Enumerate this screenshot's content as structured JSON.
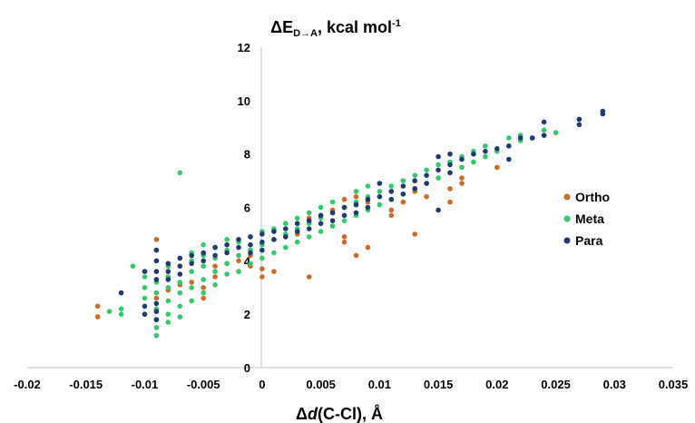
{
  "chart_data": {
    "type": "scatter",
    "title": "ΔE",
    "title_sub": "D→A",
    "title_rest": ", kcal mol",
    "title_sup": "-1",
    "xlabel_pre": "Δ",
    "xlabel_italic": "d",
    "xlabel_post": "(C-Cl), Å",
    "xlim": [
      -0.02,
      0.035
    ],
    "ylim": [
      0,
      12
    ],
    "x_ticks": [
      "-0.02",
      "-0.015",
      "-0.01",
      "-0.005",
      "0",
      "0.005",
      "0.01",
      "0.015",
      "0.02",
      "0.025",
      "0.03",
      "0.035"
    ],
    "y_ticks": [
      "0",
      "2",
      "4",
      "6",
      "8",
      "10",
      "12"
    ],
    "grid": false,
    "legend_position": "right",
    "series": [
      {
        "name": "Ortho",
        "color": "#cc6b28",
        "points": [
          [
            -0.014,
            2.3
          ],
          [
            -0.014,
            1.9
          ],
          [
            -0.009,
            4.8
          ],
          [
            -0.009,
            2.6
          ],
          [
            -0.008,
            2.9
          ],
          [
            -0.007,
            3.1
          ],
          [
            -0.006,
            3.2
          ],
          [
            -0.005,
            3.0
          ],
          [
            -0.005,
            2.6
          ],
          [
            -0.004,
            3.4
          ],
          [
            -0.004,
            3.8
          ],
          [
            -0.003,
            3.9
          ],
          [
            -0.002,
            3.6
          ],
          [
            -0.002,
            4.0
          ],
          [
            -0.001,
            3.8
          ],
          [
            -0.001,
            4.2
          ],
          [
            0.0,
            3.4
          ],
          [
            0.0,
            3.7
          ],
          [
            0.001,
            3.6
          ],
          [
            0.002,
            4.9
          ],
          [
            0.003,
            5.0
          ],
          [
            0.004,
            3.4
          ],
          [
            0.004,
            5.6
          ],
          [
            0.005,
            5.7
          ],
          [
            0.006,
            5.9
          ],
          [
            0.007,
            6.3
          ],
          [
            0.007,
            4.9
          ],
          [
            0.007,
            4.7
          ],
          [
            0.008,
            4.2
          ],
          [
            0.008,
            6.4
          ],
          [
            0.009,
            4.5
          ],
          [
            0.009,
            6.2
          ],
          [
            0.011,
            5.9
          ],
          [
            0.011,
            5.7
          ],
          [
            0.012,
            6.2
          ],
          [
            0.013,
            5.0
          ],
          [
            0.013,
            6.6
          ],
          [
            0.014,
            6.4
          ],
          [
            0.016,
            6.2
          ],
          [
            0.016,
            6.7
          ],
          [
            0.017,
            6.9
          ],
          [
            0.017,
            7.1
          ],
          [
            0.02,
            7.5
          ]
        ]
      },
      {
        "name": "Meta",
        "color": "#33c86e",
        "points": [
          [
            -0.013,
            2.1
          ],
          [
            -0.012,
            2.0
          ],
          [
            -0.012,
            2.2
          ],
          [
            -0.011,
            3.8
          ],
          [
            -0.01,
            2.6
          ],
          [
            -0.01,
            3.0
          ],
          [
            -0.01,
            3.4
          ],
          [
            -0.009,
            1.2
          ],
          [
            -0.009,
            1.5
          ],
          [
            -0.009,
            1.8
          ],
          [
            -0.009,
            2.2
          ],
          [
            -0.009,
            2.8
          ],
          [
            -0.009,
            3.2
          ],
          [
            -0.008,
            1.7
          ],
          [
            -0.008,
            2.0
          ],
          [
            -0.008,
            2.5
          ],
          [
            -0.008,
            3.0
          ],
          [
            -0.008,
            3.4
          ],
          [
            -0.008,
            3.8
          ],
          [
            -0.007,
            7.3
          ],
          [
            -0.007,
            1.9
          ],
          [
            -0.007,
            2.3
          ],
          [
            -0.007,
            2.8
          ],
          [
            -0.007,
            3.2
          ],
          [
            -0.006,
            2.5
          ],
          [
            -0.006,
            3.0
          ],
          [
            -0.006,
            3.6
          ],
          [
            -0.006,
            4.0
          ],
          [
            -0.006,
            4.3
          ],
          [
            -0.005,
            2.8
          ],
          [
            -0.005,
            3.3
          ],
          [
            -0.005,
            3.8
          ],
          [
            -0.005,
            4.2
          ],
          [
            -0.005,
            4.6
          ],
          [
            -0.004,
            3.1
          ],
          [
            -0.004,
            3.6
          ],
          [
            -0.004,
            4.1
          ],
          [
            -0.004,
            4.5
          ],
          [
            -0.003,
            3.5
          ],
          [
            -0.003,
            3.9
          ],
          [
            -0.003,
            4.4
          ],
          [
            -0.003,
            4.8
          ],
          [
            -0.002,
            3.6
          ],
          [
            -0.002,
            4.2
          ],
          [
            -0.002,
            4.7
          ],
          [
            -0.001,
            3.9
          ],
          [
            -0.001,
            4.4
          ],
          [
            -0.001,
            4.9
          ],
          [
            0.0,
            4.1
          ],
          [
            0.0,
            4.6
          ],
          [
            0.0,
            5.1
          ],
          [
            0.001,
            4.3
          ],
          [
            0.001,
            4.8
          ],
          [
            0.001,
            5.2
          ],
          [
            0.002,
            4.5
          ],
          [
            0.002,
            5.0
          ],
          [
            0.002,
            5.4
          ],
          [
            0.003,
            4.7
          ],
          [
            0.003,
            5.2
          ],
          [
            0.003,
            5.6
          ],
          [
            0.004,
            4.9
          ],
          [
            0.004,
            5.4
          ],
          [
            0.004,
            5.8
          ],
          [
            0.005,
            5.1
          ],
          [
            0.005,
            5.6
          ],
          [
            0.005,
            6.0
          ],
          [
            0.006,
            5.3
          ],
          [
            0.006,
            5.8
          ],
          [
            0.006,
            6.2
          ],
          [
            0.007,
            5.5
          ],
          [
            0.007,
            6.0
          ],
          [
            0.008,
            5.7
          ],
          [
            0.008,
            6.2
          ],
          [
            0.008,
            6.6
          ],
          [
            0.009,
            5.9
          ],
          [
            0.009,
            6.4
          ],
          [
            0.009,
            6.8
          ],
          [
            0.01,
            6.1
          ],
          [
            0.01,
            6.6
          ],
          [
            0.011,
            6.3
          ],
          [
            0.011,
            6.8
          ],
          [
            0.012,
            6.5
          ],
          [
            0.012,
            7.0
          ],
          [
            0.013,
            6.7
          ],
          [
            0.013,
            7.2
          ],
          [
            0.014,
            6.9
          ],
          [
            0.014,
            7.4
          ],
          [
            0.015,
            7.1
          ],
          [
            0.015,
            7.6
          ],
          [
            0.016,
            7.3
          ],
          [
            0.016,
            7.7
          ],
          [
            0.017,
            7.5
          ],
          [
            0.017,
            7.9
          ],
          [
            0.018,
            7.7
          ],
          [
            0.018,
            8.1
          ],
          [
            0.019,
            7.9
          ],
          [
            0.019,
            8.3
          ],
          [
            0.02,
            8.1
          ],
          [
            0.021,
            8.3
          ],
          [
            0.021,
            8.6
          ],
          [
            0.022,
            8.5
          ],
          [
            0.022,
            8.7
          ],
          [
            0.023,
            8.6
          ],
          [
            0.024,
            8.9
          ],
          [
            0.025,
            8.8
          ]
        ]
      },
      {
        "name": "Para",
        "color": "#1f3a6e",
        "points": [
          [
            -0.012,
            2.8
          ],
          [
            -0.01,
            2.3
          ],
          [
            -0.01,
            2.0
          ],
          [
            -0.01,
            3.6
          ],
          [
            -0.009,
            4.4
          ],
          [
            -0.009,
            4.0
          ],
          [
            -0.009,
            3.6
          ],
          [
            -0.009,
            3.3
          ],
          [
            -0.009,
            2.4
          ],
          [
            -0.009,
            2.1
          ],
          [
            -0.009,
            1.8
          ],
          [
            -0.008,
            3.9
          ],
          [
            -0.008,
            3.6
          ],
          [
            -0.008,
            3.3
          ],
          [
            -0.007,
            4.1
          ],
          [
            -0.007,
            3.8
          ],
          [
            -0.007,
            3.5
          ],
          [
            -0.006,
            4.2
          ],
          [
            -0.006,
            3.9
          ],
          [
            -0.005,
            4.3
          ],
          [
            -0.005,
            4.0
          ],
          [
            -0.004,
            4.5
          ],
          [
            -0.004,
            4.2
          ],
          [
            -0.003,
            4.6
          ],
          [
            -0.003,
            4.3
          ],
          [
            -0.002,
            4.8
          ],
          [
            -0.002,
            4.5
          ],
          [
            -0.001,
            4.9
          ],
          [
            -0.001,
            4.6
          ],
          [
            -0.001,
            4.3
          ],
          [
            0.0,
            5.0
          ],
          [
            0.0,
            4.7
          ],
          [
            0.0,
            4.4
          ],
          [
            0.001,
            5.1
          ],
          [
            0.001,
            4.8
          ],
          [
            0.002,
            5.2
          ],
          [
            0.002,
            4.9
          ],
          [
            0.003,
            5.4
          ],
          [
            0.003,
            5.1
          ],
          [
            0.004,
            5.5
          ],
          [
            0.004,
            5.2
          ],
          [
            0.005,
            5.7
          ],
          [
            0.005,
            5.4
          ],
          [
            0.006,
            5.8
          ],
          [
            0.006,
            5.5
          ],
          [
            0.007,
            6.0
          ],
          [
            0.007,
            5.7
          ],
          [
            0.008,
            6.1
          ],
          [
            0.008,
            5.8
          ],
          [
            0.009,
            6.3
          ],
          [
            0.009,
            6.0
          ],
          [
            0.01,
            6.4
          ],
          [
            0.01,
            6.9
          ],
          [
            0.011,
            6.6
          ],
          [
            0.011,
            6.3
          ],
          [
            0.012,
            6.8
          ],
          [
            0.012,
            6.5
          ],
          [
            0.013,
            7.0
          ],
          [
            0.013,
            6.7
          ],
          [
            0.014,
            7.2
          ],
          [
            0.014,
            6.9
          ],
          [
            0.015,
            7.4
          ],
          [
            0.015,
            7.9
          ],
          [
            0.015,
            5.9
          ],
          [
            0.016,
            7.6
          ],
          [
            0.016,
            7.3
          ],
          [
            0.016,
            8.0
          ],
          [
            0.017,
            7.8
          ],
          [
            0.018,
            8.0
          ],
          [
            0.019,
            8.1
          ],
          [
            0.02,
            8.2
          ],
          [
            0.021,
            8.3
          ],
          [
            0.021,
            7.8
          ],
          [
            0.022,
            8.6
          ],
          [
            0.023,
            8.6
          ],
          [
            0.024,
            8.7
          ],
          [
            0.024,
            9.2
          ],
          [
            0.027,
            9.1
          ],
          [
            0.027,
            9.3
          ],
          [
            0.029,
            9.6
          ],
          [
            0.029,
            9.5
          ]
        ]
      }
    ]
  }
}
